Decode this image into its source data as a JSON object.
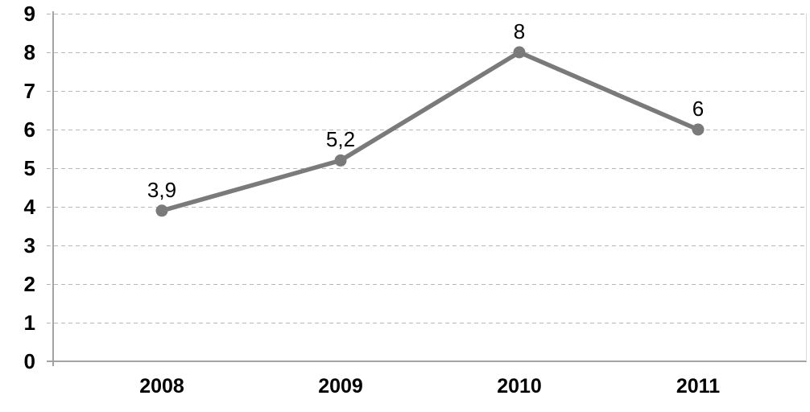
{
  "chart_data": {
    "type": "line",
    "categories": [
      "2008",
      "2009",
      "2010",
      "2011"
    ],
    "values": [
      3.9,
      5.2,
      8,
      6
    ],
    "data_labels": [
      "3,9",
      "5,2",
      "8",
      "6"
    ],
    "series_name": "",
    "title": "",
    "xlabel": "",
    "ylabel": "",
    "ylim": [
      0,
      9
    ],
    "ytick_step": 1,
    "y_tick_labels": [
      "0",
      "1",
      "2",
      "3",
      "4",
      "5",
      "6",
      "7",
      "8",
      "9"
    ],
    "grid": "horizontal-dashed",
    "legend": "none",
    "marker": "circle",
    "colors": {
      "line": "#7a7a7a",
      "marker": "#7a7a7a",
      "axis": "#a3a3a3",
      "gridline": "#b8b8b8",
      "right_border": "#d9d9d9",
      "text": "#000000",
      "background": "#ffffff"
    }
  }
}
